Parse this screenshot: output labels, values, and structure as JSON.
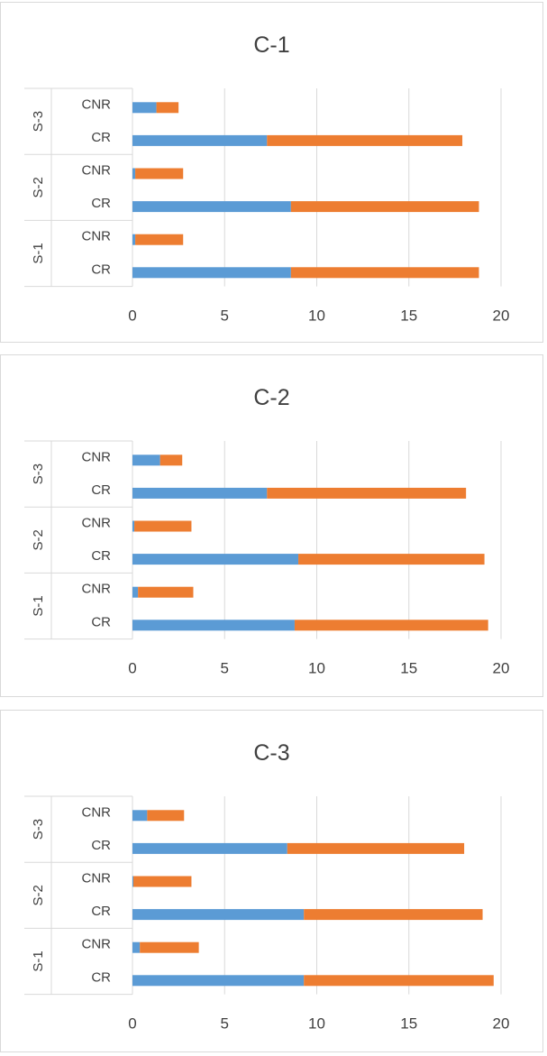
{
  "colors": {
    "series1": "#5b9bd5",
    "series2": "#ed7d31",
    "grid": "#d9d9d9",
    "axis_text": "#404040"
  },
  "chart_data": [
    {
      "type": "bar",
      "orientation": "horizontal",
      "stacked": true,
      "title": "C-1",
      "groups": [
        "S-3",
        "S-2",
        "S-1"
      ],
      "categories": [
        "CNR",
        "CR",
        "CNR",
        "CR",
        "CNR",
        "CR"
      ],
      "series": [
        {
          "values": [
            1.3,
            7.3,
            0.15,
            8.6,
            0.15,
            8.6
          ]
        },
        {
          "values": [
            1.2,
            10.6,
            2.6,
            10.2,
            2.6,
            10.2
          ]
        }
      ],
      "xlim": [
        0,
        20
      ],
      "xticks": [
        "0",
        "5",
        "10",
        "15",
        "20"
      ],
      "grid": true
    },
    {
      "type": "bar",
      "orientation": "horizontal",
      "stacked": true,
      "title": "C-2",
      "groups": [
        "S-3",
        "S-2",
        "S-1"
      ],
      "categories": [
        "CNR",
        "CR",
        "CNR",
        "CR",
        "CNR",
        "CR"
      ],
      "series": [
        {
          "values": [
            1.5,
            7.3,
            0.1,
            9.0,
            0.3,
            8.8
          ]
        },
        {
          "values": [
            1.2,
            10.8,
            3.1,
            10.1,
            3.0,
            10.5
          ]
        }
      ],
      "xlim": [
        0,
        20
      ],
      "xticks": [
        "0",
        "5",
        "10",
        "15",
        "20"
      ],
      "grid": true
    },
    {
      "type": "bar",
      "orientation": "horizontal",
      "stacked": true,
      "title": "C-3",
      "groups": [
        "S-3",
        "S-2",
        "S-1"
      ],
      "categories": [
        "CNR",
        "CR",
        "CNR",
        "CR",
        "CNR",
        "CR"
      ],
      "series": [
        {
          "values": [
            0.8,
            8.4,
            0.05,
            9.3,
            0.4,
            9.3
          ]
        },
        {
          "values": [
            2.0,
            9.6,
            3.15,
            9.7,
            3.2,
            10.3
          ]
        }
      ],
      "xlim": [
        0,
        20
      ],
      "xticks": [
        "0",
        "5",
        "10",
        "15",
        "20"
      ],
      "grid": true
    }
  ]
}
